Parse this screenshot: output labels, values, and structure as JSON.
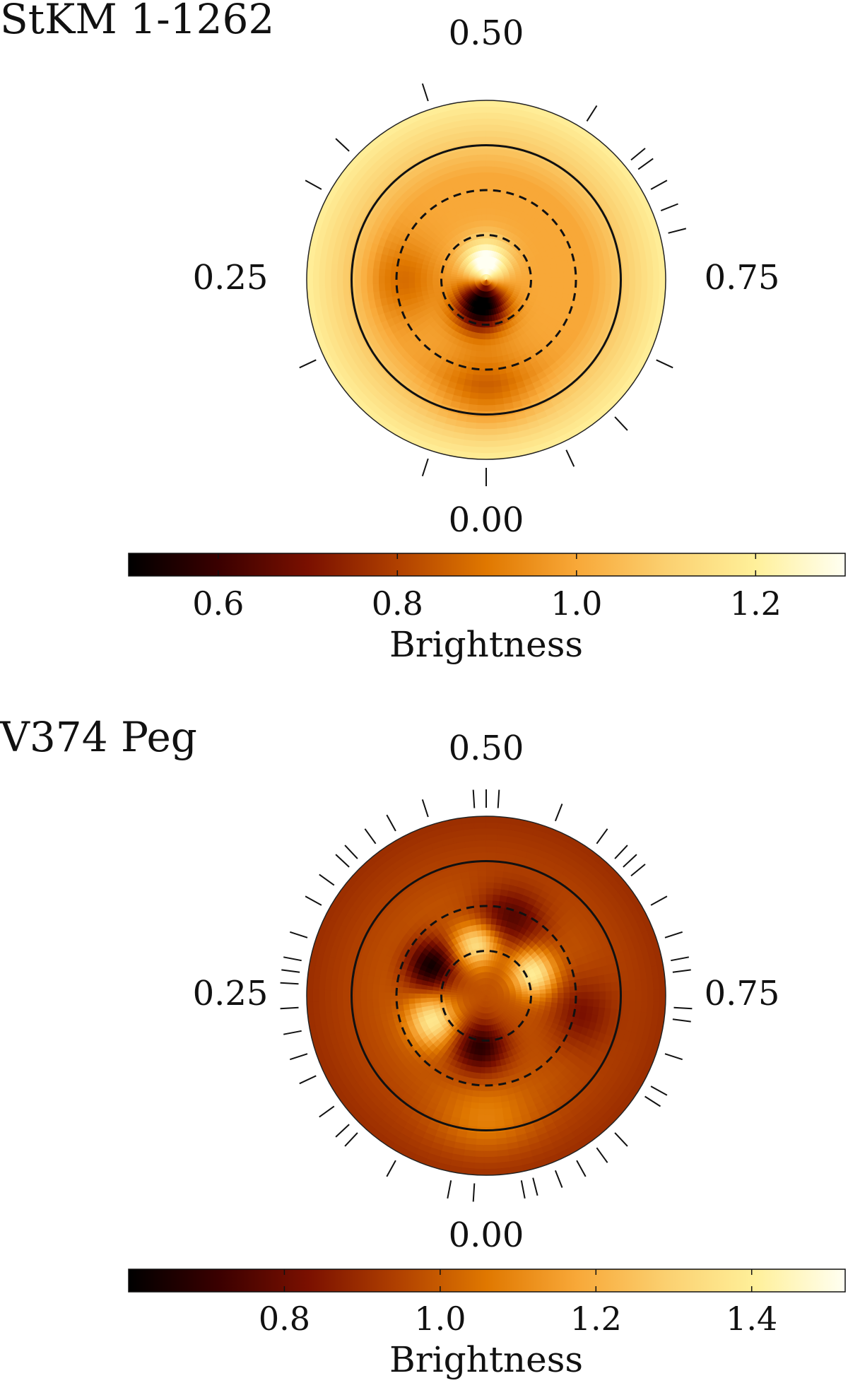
{
  "chart_data": [
    {
      "type": "heatmap",
      "title": "StKM 1-1262",
      "phase_labels": {
        "top": "0.50",
        "left": "0.25",
        "right": "0.75",
        "bottom": "0.00"
      },
      "colorbar": {
        "label": "Brightness",
        "range": [
          0.5,
          1.3
        ],
        "ticks": [
          0.6,
          0.8,
          1.0,
          1.2
        ],
        "tick_labels": [
          "0.6",
          "0.8",
          "1.0",
          "1.2"
        ],
        "colors": [
          "#000000",
          "#3a0000",
          "#7a1000",
          "#b04000",
          "#e07800",
          "#f8a838",
          "#fbd070",
          "#fff09a",
          "#fffff2"
        ]
      },
      "base_brightness": 1.0,
      "rim_brightness": 1.2,
      "features": [
        {
          "kind": "dark",
          "latitude": 72,
          "phase": 0.03,
          "amplitude": 0.55,
          "width": 12
        },
        {
          "kind": "bright",
          "latitude": 78,
          "phase": 0.5,
          "amplitude": 0.35,
          "width": 11
        },
        {
          "kind": "dark",
          "latitude": 35,
          "phase": 0.25,
          "amplitude": 0.12,
          "width": 16
        },
        {
          "kind": "dark",
          "latitude": 15,
          "phase": 0.0,
          "amplitude": 0.15,
          "width": 18
        }
      ],
      "latitude_circles": [
        {
          "lat": 0,
          "style": "solid"
        },
        {
          "lat": 30,
          "style": "dashed"
        },
        {
          "lat": 60,
          "style": "dashed"
        }
      ],
      "observed_phases": [
        0.0,
        0.05,
        0.93,
        0.82,
        0.65,
        0.64,
        0.59,
        0.67,
        0.69,
        0.71,
        0.45,
        0.37,
        0.33,
        0.18,
        0.88
      ]
    },
    {
      "type": "heatmap",
      "title": "V374 Peg",
      "phase_labels": {
        "top": "0.50",
        "left": "0.25",
        "right": "0.75",
        "bottom": "0.00"
      },
      "colorbar": {
        "label": "Brightness",
        "range": [
          0.6,
          1.52
        ],
        "ticks": [
          0.8,
          1.0,
          1.2,
          1.4
        ],
        "tick_labels": [
          "0.8",
          "1.0",
          "1.2",
          "1.4"
        ],
        "colors": [
          "#000000",
          "#3a0000",
          "#7a1000",
          "#b04000",
          "#e07800",
          "#f8a838",
          "#fbd070",
          "#fff09a",
          "#fffff2"
        ]
      },
      "base_brightness": 0.98,
      "rim_brightness": 0.9,
      "features": [
        {
          "kind": "dark",
          "latitude": 48,
          "phase": 0.33,
          "amplitude": 0.35,
          "width": 11
        },
        {
          "kind": "dark",
          "latitude": 55,
          "phase": 0.02,
          "amplitude": 0.3,
          "width": 12
        },
        {
          "kind": "bright",
          "latitude": 50,
          "phase": 0.18,
          "amplitude": 0.4,
          "width": 11
        },
        {
          "kind": "bright",
          "latitude": 55,
          "phase": 0.47,
          "amplitude": 0.38,
          "width": 10
        },
        {
          "kind": "bright",
          "latitude": 55,
          "phase": 0.68,
          "amplitude": 0.42,
          "width": 10
        },
        {
          "kind": "dark",
          "latitude": 35,
          "phase": 0.55,
          "amplitude": 0.22,
          "width": 14
        },
        {
          "kind": "dark",
          "latitude": 25,
          "phase": 0.78,
          "amplitude": 0.15,
          "width": 14
        },
        {
          "kind": "bright",
          "latitude": 5,
          "phase": 0.0,
          "amplitude": 0.12,
          "width": 16
        }
      ],
      "latitude_circles": [
        {
          "lat": 0,
          "style": "solid"
        },
        {
          "lat": 30,
          "style": "dashed"
        },
        {
          "lat": 60,
          "style": "dashed"
        }
      ],
      "observed_phases": [
        0.01,
        0.03,
        0.08,
        0.12,
        0.13,
        0.15,
        0.18,
        0.2,
        0.22,
        0.24,
        0.26,
        0.27,
        0.28,
        0.3,
        0.33,
        0.35,
        0.37,
        0.38,
        0.4,
        0.42,
        0.45,
        0.49,
        0.5,
        0.51,
        0.56,
        0.6,
        0.62,
        0.63,
        0.64,
        0.67,
        0.7,
        0.72,
        0.73,
        0.76,
        0.77,
        0.8,
        0.83,
        0.84,
        0.88,
        0.9,
        0.92,
        0.94,
        0.96,
        0.97
      ]
    }
  ]
}
